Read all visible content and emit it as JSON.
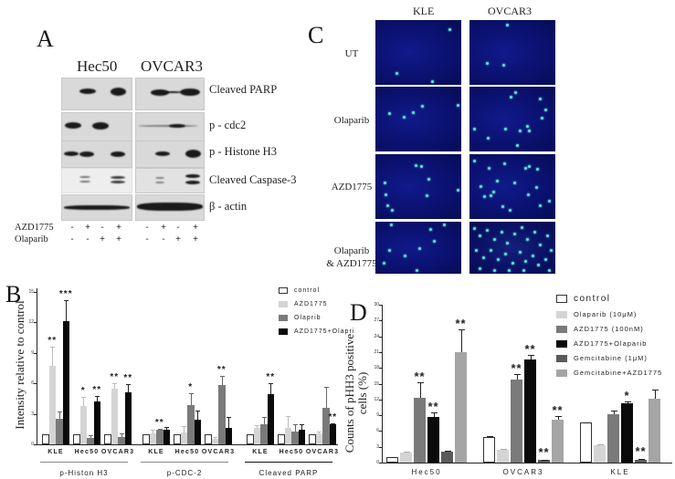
{
  "panelA": {
    "letter": "A",
    "cell_lines": [
      "Hec50",
      "OVCAR3"
    ],
    "blots": [
      "Cleaved PARP",
      "p - cdc2",
      "p - Histone H3",
      "Cleaved Caspase-3",
      "β - actin"
    ],
    "treatments": [
      {
        "name": "AZD1775",
        "signs": [
          "-",
          "+",
          "-",
          "+",
          "-",
          "+",
          "-",
          "+"
        ]
      },
      {
        "name": "Olaparib",
        "signs": [
          "-",
          "-",
          "+",
          "+",
          "-",
          "-",
          "+",
          "+"
        ]
      }
    ]
  },
  "panelC": {
    "letter": "C",
    "columns": [
      "KLE",
      "OVCAR3"
    ],
    "rows": [
      "UT",
      "Olaparib",
      "AZD1775",
      "Olaparib\n& AZD1775"
    ]
  },
  "panelB": {
    "letter": "B",
    "ylabel": "Intensity relative to control",
    "legend": [
      "control",
      "AZD1775",
      "Olaprib",
      "AZD1775+Olapri"
    ]
  },
  "panelD": {
    "letter": "D",
    "ylabel_line1": "Counts of pHH3 positive",
    "ylabel_line2": "cells (%)",
    "legend": [
      "control",
      "Olaparib (10μM)",
      "AZD1775 (100nM)",
      "AZD1775+Olaparib",
      "Gemcitabine (1μM)",
      "Gemcitabine+AZD1775"
    ]
  },
  "chart_data": [
    {
      "type": "bar",
      "title": "B",
      "ylabel": "Intensity relative to control",
      "ylim": [
        0,
        15
      ],
      "yticks": [
        0,
        3,
        6,
        9,
        12,
        15
      ],
      "series_names": [
        "control",
        "AZD1775",
        "Olaprib",
        "AZD1775+Olapri"
      ],
      "colors": [
        "#ffffff",
        "#d4d4d4",
        "#7a7a7a",
        "#0a0a0a"
      ],
      "groups": [
        {
          "name": "p-Histon H3",
          "categories": [
            {
              "name": "KLE",
              "values": [
                1,
                7.7,
                2.5,
                12.1
              ],
              "errors": [
                0,
                1.9,
                0.7,
                2.1
              ],
              "sig": [
                "",
                "**",
                "",
                "***"
              ]
            },
            {
              "name": "Hec50",
              "values": [
                1,
                3.8,
                0.6,
                4.2
              ],
              "errors": [
                0,
                0.9,
                0.3,
                0.6
              ],
              "sig": [
                "",
                "*",
                "",
                "**"
              ]
            },
            {
              "name": "OVCAR3",
              "values": [
                1,
                5.5,
                0.7,
                5.1
              ],
              "errors": [
                0,
                0.5,
                0.4,
                0.8
              ],
              "sig": [
                "",
                "**",
                "",
                "**"
              ]
            }
          ]
        },
        {
          "name": "p-CDC-2",
          "categories": [
            {
              "name": "KLE",
              "values": [
                1,
                1.1,
                1.4,
                1.4
              ],
              "errors": [
                0,
                0.3,
                0.1,
                0.3
              ],
              "sig": [
                "",
                "",
                "**",
                ""
              ]
            },
            {
              "name": "Hec50",
              "values": [
                1,
                1.2,
                3.9,
                2.4
              ],
              "errors": [
                0,
                0.6,
                1.1,
                0.9
              ],
              "sig": [
                "",
                "",
                "*",
                ""
              ]
            },
            {
              "name": "OVCAR3",
              "values": [
                1,
                0.5,
                5.8,
                1.6
              ],
              "errors": [
                0,
                0.2,
                0.9,
                1.1
              ],
              "sig": [
                "",
                "",
                "**",
                ""
              ]
            }
          ]
        },
        {
          "name": "Cleaved PARP",
          "categories": [
            {
              "name": "KLE",
              "values": [
                1,
                1.6,
                2.0,
                4.9
              ],
              "errors": [
                0,
                0.3,
                0.7,
                1.1
              ],
              "sig": [
                "",
                "",
                "",
                "**"
              ]
            },
            {
              "name": "Hec50",
              "values": [
                1,
                1.6,
                1.3,
                1.4
              ],
              "errors": [
                0,
                1.2,
                0.7,
                0.6
              ],
              "sig": [
                "",
                "",
                "",
                ""
              ]
            },
            {
              "name": "OVCAR3",
              "values": [
                1,
                1.1,
                3.6,
                2.0
              ],
              "errors": [
                0,
                0.2,
                2.1,
                0.1
              ],
              "sig": [
                "",
                "",
                "",
                "**"
              ]
            }
          ]
        }
      ],
      "legend_position": "top-right"
    },
    {
      "type": "bar",
      "title": "D",
      "ylabel": "Counts of pHH3 positive cells (%)",
      "ylim": [
        0,
        30
      ],
      "yticks": [
        0,
        3,
        6,
        9,
        12,
        15,
        18,
        21,
        24,
        27,
        30
      ],
      "categories": [
        "Hec50",
        "OVCAR3",
        "KLE"
      ],
      "series": [
        {
          "name": "control",
          "color": "#ffffff",
          "values": [
            1.0,
            4.8,
            7.6
          ],
          "errors": [
            0.1,
            0.3,
            0.1
          ],
          "sig": [
            "",
            "",
            ""
          ]
        },
        {
          "name": "Olaparib (10μM)",
          "color": "#d4d4d4",
          "values": [
            1.9,
            2.4,
            3.3
          ],
          "errors": [
            0.1,
            0.2,
            0.1
          ],
          "sig": [
            "",
            "",
            ""
          ]
        },
        {
          "name": "AZD1775 (100nM)",
          "color": "#7a7a7a",
          "values": [
            12.3,
            15.8,
            9.2
          ],
          "errors": [
            2.9,
            1.1,
            0.7
          ],
          "sig": [
            "**",
            "**",
            ""
          ]
        },
        {
          "name": "AZD1775+Olaparib",
          "color": "#0a0a0a",
          "values": [
            8.7,
            19.6,
            11.2
          ],
          "errors": [
            0.8,
            0.8,
            0.5
          ],
          "sig": [
            "**",
            "**",
            "*"
          ]
        },
        {
          "name": "Gemcitabine (1μM)",
          "color": "#5a5a5a",
          "values": [
            2.1,
            0.5,
            0.6
          ],
          "errors": [
            0.2,
            0.1,
            0.1
          ],
          "sig": [
            "",
            "**",
            "**"
          ]
        },
        {
          "name": "Gemcitabine+AZD1775",
          "color": "#a5a5a5",
          "values": [
            20.9,
            8.1,
            12.2
          ],
          "errors": [
            4.5,
            0.8,
            1.7
          ],
          "sig": [
            "**",
            "**",
            ""
          ]
        }
      ],
      "legend_position": "top-right"
    }
  ]
}
